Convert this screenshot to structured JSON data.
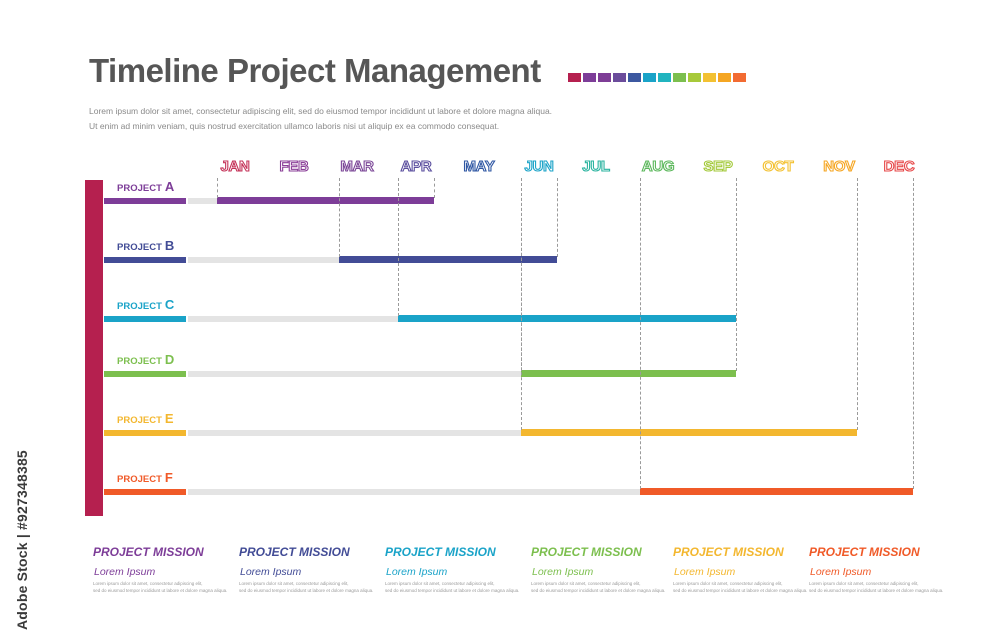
{
  "header": {
    "title": "Timeline Project Management",
    "description_lines": [
      "Lorem ipsum dolor sit amet, consectetur adipiscing elit, sed do eiusmod tempor incididunt ut labore et dolore magna aliqua.",
      "Ut enim ad minim veniam, quis nostrud exercitation ullamco laboris nisi ut aliquip ex ea commodo consequat."
    ],
    "swatch_colors": [
      "#b5204f",
      "#7d3d98",
      "#7e3d96",
      "#6b4c9b",
      "#3c58a0",
      "#1aa3c8",
      "#21b4bf",
      "#7cbf4e",
      "#a7c93a",
      "#f3c132",
      "#f5a623",
      "#f26b32"
    ]
  },
  "months": [
    {
      "label": "JAN",
      "color": "#c43258"
    },
    {
      "label": "FEB",
      "color": "#8a3e97"
    },
    {
      "label": "MAR",
      "color": "#7a4596"
    },
    {
      "label": "APR",
      "color": "#5a4e9e"
    },
    {
      "label": "MAY",
      "color": "#2f57a3"
    },
    {
      "label": "JUN",
      "color": "#1aa3c8"
    },
    {
      "label": "JUL",
      "color": "#2ab39f"
    },
    {
      "label": "AUG",
      "color": "#5cb85c"
    },
    {
      "label": "SEP",
      "color": "#a3c93a"
    },
    {
      "label": "OCT",
      "color": "#f3c132"
    },
    {
      "label": "NOV",
      "color": "#f5a623"
    },
    {
      "label": "DEC",
      "color": "#e7494a"
    }
  ],
  "projects": [
    {
      "label": "PROJECT",
      "letter": "A",
      "color": "#7d3d98",
      "start_month": "JAN",
      "end_month": "APR"
    },
    {
      "label": "PROJECT",
      "letter": "B",
      "color": "#424c96",
      "start_month": "MAR",
      "end_month": "JUN"
    },
    {
      "label": "PROJECT",
      "letter": "C",
      "color": "#1aa3c8",
      "start_month": "APR",
      "end_month": "SEP"
    },
    {
      "label": "PROJECT",
      "letter": "D",
      "color": "#7cbf4e",
      "start_month": "JUN",
      "end_month": "SEP"
    },
    {
      "label": "PROJECT",
      "letter": "E",
      "color": "#f3b72f",
      "start_month": "JUN",
      "end_month": "NOV"
    },
    {
      "label": "PROJECT",
      "letter": "F",
      "color": "#f05a28",
      "start_month": "AUG",
      "end_month": "DEC"
    }
  ],
  "missions": [
    {
      "title": "PROJECT MISSION",
      "subtitle": "Lorem Ipsum",
      "color": "#7d3d98",
      "body": [
        "Lorem ipsum dolor sit amet, consectetur adipiscing elit,",
        "sed do eiusmod tempor incididunt ut labore et dolore magna aliqua."
      ]
    },
    {
      "title": "PROJECT MISSION",
      "subtitle": "Lorem Ipsum",
      "color": "#424c96",
      "body": [
        "Lorem ipsum dolor sit amet, consectetur adipiscing elit,",
        "sed do eiusmod tempor incididunt ut labore et dolore magna aliqua."
      ]
    },
    {
      "title": "PROJECT MISSION",
      "subtitle": "Lorem Ipsum",
      "color": "#1aa3c8",
      "body": [
        "Lorem ipsum dolor sit amet, consectetur adipiscing elit,",
        "sed do eiusmod tempor incididunt ut labore et dolore magna aliqua."
      ]
    },
    {
      "title": "PROJECT MISSION",
      "subtitle": "Lorem Ipsum",
      "color": "#7cbf4e",
      "body": [
        "Lorem ipsum dolor sit amet, consectetur adipiscing elit,",
        "sed do eiusmod tempor incididunt ut labore et dolore magna aliqua."
      ]
    },
    {
      "title": "PROJECT MISSION",
      "subtitle": "Lorem Ipsum",
      "color": "#f3b72f",
      "body": [
        "Lorem ipsum dolor sit amet, consectetur adipiscing elit,",
        "sed do eiusmod tempor incididunt ut labore et dolore magna aliqua."
      ]
    },
    {
      "title": "PROJECT MISSION",
      "subtitle": "Lorem Ipsum",
      "color": "#f05a28",
      "body": [
        "Lorem ipsum dolor sit amet, consectetur adipiscing elit,",
        "sed do eiusmod tempor incididunt ut labore et dolore magna aliqua."
      ]
    }
  ],
  "watermark": "Adobe Stock | #927348385"
}
